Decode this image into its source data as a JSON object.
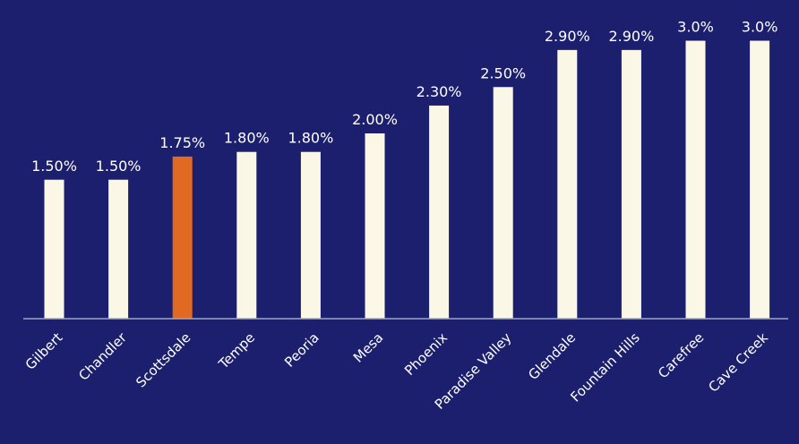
{
  "chart_data": {
    "type": "bar",
    "categories": [
      "Gilbert",
      "Chandler",
      "Scottsdale",
      "Tempe",
      "Peoria",
      "Mesa",
      "Phoenix",
      "Paradise Valley",
      "Glendale",
      "Fountain Hills",
      "Carefree",
      "Cave Creek"
    ],
    "values": [
      1.5,
      1.5,
      1.75,
      1.8,
      1.8,
      2.0,
      2.3,
      2.5,
      2.9,
      2.9,
      3.0,
      3.0
    ],
    "value_labels": [
      "1.50%",
      "1.50%",
      "1.75%",
      "1.80%",
      "1.80%",
      "2.00%",
      "2.30%",
      "2.50%",
      "2.90%",
      "2.90%",
      "3.0%",
      "3.0%"
    ],
    "highlight_category": "Scottsdale",
    "title": "",
    "xlabel": "",
    "ylabel": "",
    "ylim": [
      0,
      3.0
    ],
    "grid": false,
    "colors": {
      "background": "#1c1f6e",
      "bar": "#fbf7e6",
      "highlight": "#e06a22",
      "text": "#ffffff",
      "axis": "#9aa7c8"
    }
  }
}
